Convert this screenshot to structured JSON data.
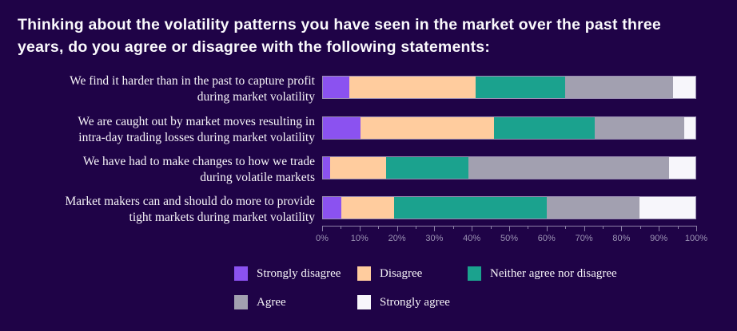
{
  "title": "Thinking about the volatility patterns you have seen in the market over the past three years, do you agree or disagree with the following statements:",
  "colors": {
    "background": "#1F0347",
    "text": "#F6F4F8",
    "axis_text": "#9C94B4",
    "strongly_disagree": "#8B52F0",
    "disagree": "#FFCC9E",
    "neither": "#1BA28E",
    "agree": "#A2A0B0",
    "strongly_agree": "#F7F6FB"
  },
  "chart_data": {
    "type": "bar",
    "stacked": true,
    "orientation": "horizontal",
    "unit": "percent",
    "xlim": [
      0,
      100
    ],
    "grid": false,
    "legend_position": "bottom",
    "x_tick_labels": [
      "0%",
      "10%",
      "20%",
      "30%",
      "40%",
      "50%",
      "60%",
      "70%",
      "80%",
      "90%",
      "100%"
    ],
    "minor_tick_step": 5,
    "categories": [
      "We find it harder than in the past to capture profit\nduring market volatility",
      "We are caught out by market moves resulting in\nintra-day trading losses during market volatility",
      "We have had to make changes to how we trade\nduring volatile markets",
      "Market makers can and should do more to provide\ntight markets during market volatility"
    ],
    "series": [
      {
        "name": "Strongly disagree",
        "color": "#8B52F0",
        "values": [
          7,
          10,
          2,
          5
        ]
      },
      {
        "name": "Disagree",
        "color": "#FFCC9E",
        "values": [
          34,
          36,
          15,
          14
        ]
      },
      {
        "name": "Neither agree nor disagree",
        "color": "#1BA28E",
        "values": [
          24,
          27,
          22,
          41
        ]
      },
      {
        "name": "Agree",
        "color": "#A2A0B0",
        "values": [
          29,
          24,
          54,
          25
        ]
      },
      {
        "name": "Strongly agree",
        "color": "#F7F6FB",
        "values": [
          6,
          3,
          7,
          15
        ]
      }
    ]
  }
}
